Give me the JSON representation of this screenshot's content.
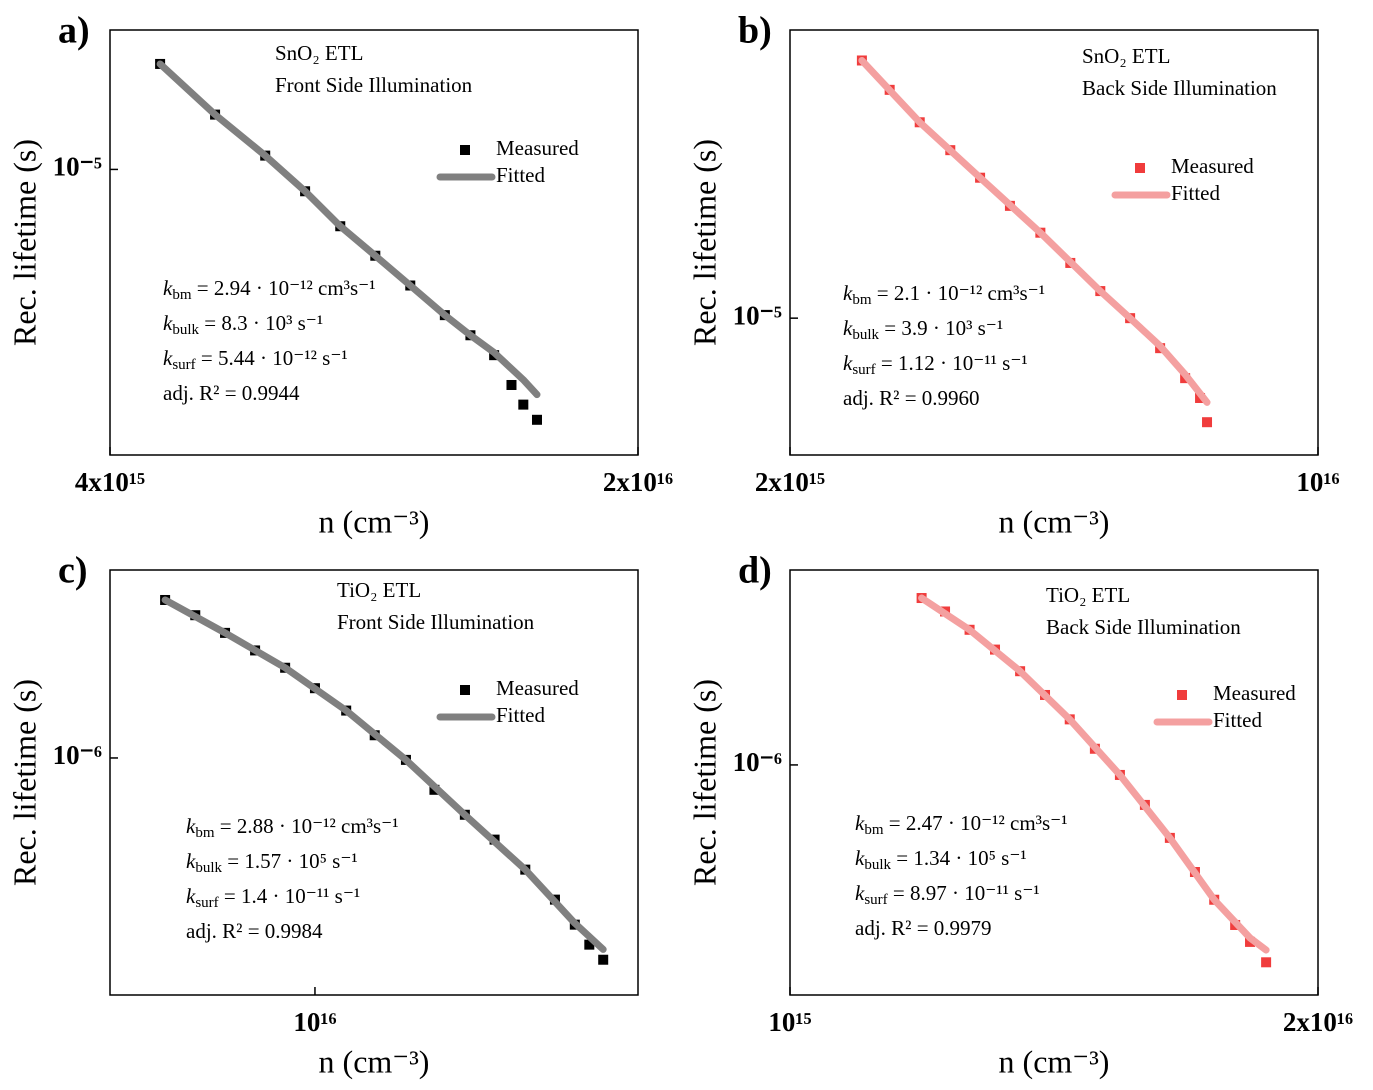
{
  "chart_data": [
    {
      "type": "scatter",
      "label": "a)",
      "x_label": "n (cm⁻³)",
      "y_label": "Rec. lifetime (s)",
      "log_x": true,
      "log_y": true,
      "annotations": [
        "SnO₂ ETL",
        "Front Side Illumination"
      ],
      "params": [
        {
          "symbol": "k",
          "subscript": "bm",
          "text": " = 2.94 · 10⁻¹² cm³s⁻¹"
        },
        {
          "symbol": "k",
          "subscript": "bulk",
          "text": " = 8.3 · 10³ s⁻¹"
        },
        {
          "symbol": "k",
          "subscript": "surf",
          "text": " = 5.44 · 10⁻¹² s⁻¹"
        },
        {
          "text": "adj. R² = 0.9944"
        }
      ],
      "xlim": [
        4000000000000000.0,
        2e+16
      ],
      "xticks": [
        {
          "value": 4000000000000000.0,
          "label": "4x10¹⁵"
        },
        {
          "value": 2e+16,
          "label": "2x10¹⁶"
        }
      ],
      "ylim": [
        3e-06,
        1.8e-05
      ],
      "yticks": [
        {
          "value": 1e-05,
          "label": "10⁻⁵"
        }
      ],
      "series": [
        {
          "name": "Measured",
          "color": "#000000",
          "mark": "square",
          "x": [
            4660000000000000.0,
            5510000000000000.0,
            6420000000000000.0,
            7250000000000000.0,
            8070000000000000.0,
            8980000000000000.0,
            9990000000000000.0,
            1.11e+16,
            1.2e+16,
            1.29e+16,
            1.36e+16,
            1.41e+16,
            1.47e+16
          ],
          "values": [
            1.56e-05,
            1.26e-05,
            1.06e-05,
            9.12e-06,
            7.87e-06,
            6.95e-06,
            6.13e-06,
            5.41e-06,
            4.97e-06,
            4.57e-06,
            4.03e-06,
            3.71e-06,
            3.48e-06
          ]
        },
        {
          "name": "Fitted",
          "color": "#808080",
          "mark": "line",
          "x": [
            4660000000000000.0,
            5510000000000000.0,
            6420000000000000.0,
            7250000000000000.0,
            8070000000000000.0,
            8980000000000000.0,
            9990000000000000.0,
            1.11e+16,
            1.2e+16,
            1.29e+16,
            1.41e+16,
            1.47e+16
          ],
          "values": [
            1.56e-05,
            1.26e-05,
            1.06e-05,
            9.12e-06,
            7.87e-06,
            6.95e-06,
            6.13e-06,
            5.41e-06,
            4.97e-06,
            4.62e-06,
            4.12e-06,
            3.87e-06
          ]
        }
      ]
    },
    {
      "type": "scatter",
      "label": "b)",
      "x_label": "n (cm⁻³)",
      "y_label": "Rec. lifetime (s)",
      "log_x": true,
      "log_y": true,
      "annotations": [
        "SnO₂ ETL",
        "Back Side Illumination"
      ],
      "params": [
        {
          "symbol": "k",
          "subscript": "bm",
          "text": " = 2.1 · 10⁻¹² cm³s⁻¹"
        },
        {
          "symbol": "k",
          "subscript": "bulk",
          "text": " = 3.9 · 10³ s⁻¹"
        },
        {
          "symbol": "k",
          "subscript": "surf",
          "text": " = 1.12 · 10⁻¹¹ s⁻¹"
        },
        {
          "text": "adj. R² = 0.9960"
        }
      ],
      "xlim": [
        2000000000000000.0,
        1e+16
      ],
      "xticks": [
        {
          "value": 2000000000000000.0,
          "label": "2x10¹⁵"
        },
        {
          "value": 1e+16,
          "label": "10¹⁶"
        }
      ],
      "ylim": [
        5.64e-06,
        3.34e-05
      ],
      "yticks": [
        {
          "value": 1e-05,
          "label": "10⁻⁵"
        }
      ],
      "series": [
        {
          "name": "Measured",
          "color": "#f03c3c",
          "mark": "square",
          "x": [
            2490000000000000.0,
            2710000000000000.0,
            2970000000000000.0,
            3260000000000000.0,
            3570000000000000.0,
            3910000000000000.0,
            4290000000000000.0,
            4700000000000000.0,
            5150000000000000.0,
            5640000000000000.0,
            6180000000000000.0,
            6670000000000000.0,
            6980000000000000.0,
            7130000000000000.0
          ],
          "values": [
            2.94e-05,
            2.6e-05,
            2.27e-05,
            2.02e-05,
            1.8e-05,
            1.6e-05,
            1.43e-05,
            1.26e-05,
            1.12e-05,
            1e-05,
            8.82e-06,
            7.78e-06,
            7.16e-06,
            6.47e-06
          ]
        },
        {
          "name": "Fitted",
          "color": "#f4a0a0",
          "mark": "line",
          "x": [
            2490000000000000.0,
            2970000000000000.0,
            3570000000000000.0,
            4290000000000000.0,
            5150000000000000.0,
            5640000000000000.0,
            6180000000000000.0,
            6670000000000000.0,
            7130000000000000.0
          ],
          "values": [
            2.94e-05,
            2.27e-05,
            1.8e-05,
            1.43e-05,
            1.12e-05,
            1e-05,
            8.9e-06,
            7.9e-06,
            7.03e-06
          ]
        }
      ]
    },
    {
      "type": "scatter",
      "label": "c)",
      "x_label": "n (cm⁻³)",
      "y_label": "Rec. lifetime (s)",
      "log_x": true,
      "log_y": true,
      "annotations": [
        "TiO₂ ETL",
        "Front Side Illumination"
      ],
      "params": [
        {
          "symbol": "k",
          "subscript": "bm",
          "text": " = 2.88 · 10⁻¹² cm³s⁻¹"
        },
        {
          "symbol": "k",
          "subscript": "bulk",
          "text": " = 1.57 · 10⁵ s⁻¹"
        },
        {
          "symbol": "k",
          "subscript": "surf",
          "text": " = 1.4 · 10⁻¹¹ s⁻¹"
        },
        {
          "text": "adj. R² = 0.9984"
        }
      ],
      "xlim": [
        5350000000000000.0,
        2.68e+16
      ],
      "xticks": [
        {
          "value": 1e+16,
          "label": "10¹⁶"
        }
      ],
      "ylim": [
        3.7e-07,
        2.2e-06
      ],
      "yticks": [
        {
          "value": 1e-06,
          "label": "10⁻⁶"
        }
      ],
      "series": [
        {
          "name": "Measured",
          "color": "#000000",
          "mark": "square",
          "x": [
            6330000000000000.0,
            6940000000000000.0,
            7600000000000000.0,
            8330000000000000.0,
            9130000000000000.0,
            1e+16,
            1.1e+16,
            1.2e+16,
            1.32e+16,
            1.44e+16,
            1.58e+16,
            1.73e+16,
            1.9e+16,
            2.08e+16,
            2.21e+16,
            2.31e+16,
            2.41e+16
          ],
          "values": [
            1.94e-06,
            1.82e-06,
            1.69e-06,
            1.57e-06,
            1.46e-06,
            1.34e-06,
            1.22e-06,
            1.1e-06,
            9.92e-07,
            8.75e-07,
            7.88e-07,
            7.1e-07,
            6.26e-07,
            5.52e-07,
            4.97e-07,
            4.57e-07,
            4.29e-07
          ]
        },
        {
          "name": "Fitted",
          "color": "#808080",
          "mark": "line",
          "x": [
            6330000000000000.0,
            7600000000000000.0,
            9130000000000000.0,
            1.1e+16,
            1.32e+16,
            1.58e+16,
            1.9e+16,
            2.21e+16,
            2.41e+16
          ],
          "values": [
            1.94e-06,
            1.69e-06,
            1.46e-06,
            1.22e-06,
            9.92e-07,
            7.88e-07,
            6.26e-07,
            5e-07,
            4.48e-07
          ]
        }
      ]
    },
    {
      "type": "scatter",
      "label": "d)",
      "x_label": "n (cm⁻³)",
      "y_label": "Rec. lifetime (s)",
      "log_x": true,
      "log_y": true,
      "annotations": [
        "TiO₂ ETL",
        "Back Side Illumination"
      ],
      "params": [
        {
          "symbol": "k",
          "subscript": "bm",
          "text": " = 2.47 · 10⁻¹² cm³s⁻¹"
        },
        {
          "symbol": "k",
          "subscript": "bulk",
          "text": " = 1.34 · 10⁵ s⁻¹"
        },
        {
          "symbol": "k",
          "subscript": "surf",
          "text": " = 8.97 · 10⁻¹¹ s⁻¹"
        },
        {
          "text": "adj. R² = 0.9979"
        }
      ],
      "xlim": [
        1000000000000000.0,
        2e+16
      ],
      "xticks": [
        {
          "value": 1000000000000000.0,
          "label": "10¹⁵"
        },
        {
          "value": 2e+16,
          "label": "2x10¹⁶"
        }
      ],
      "ylim": [
        3.82e-07,
        2.26e-06
      ],
      "yticks": [
        {
          "value": 1e-06,
          "label": "10⁻⁶"
        }
      ],
      "series": [
        {
          "name": "Measured",
          "color": "#f03c3c",
          "mark": "square",
          "x": [
            2110000000000000.0,
            2410000000000000.0,
            2770000000000000.0,
            3200000000000000.0,
            3690000000000000.0,
            4250000000000000.0,
            4890000000000000.0,
            5640000000000000.0,
            6500000000000000.0,
            7490000000000000.0,
            8630000000000000.0,
            9950000000000000.0,
            1.11e+16,
            1.25e+16,
            1.36e+16,
            1.49e+16
          ],
          "values": [
            2.01e-06,
            1.9e-06,
            1.76e-06,
            1.62e-06,
            1.48e-06,
            1.34e-06,
            1.21e-06,
            1.07e-06,
            9.59e-07,
            8.46e-07,
            7.37e-07,
            6.39e-07,
            5.69e-07,
            5.12e-07,
            4.77e-07,
            4.38e-07
          ]
        },
        {
          "name": "Fitted",
          "color": "#f4a0a0",
          "mark": "line",
          "x": [
            2110000000000000.0,
            2770000000000000.0,
            3690000000000000.0,
            4890000000000000.0,
            6500000000000000.0,
            8630000000000000.0,
            1.11e+16,
            1.36e+16,
            1.49e+16
          ],
          "values": [
            2.01e-06,
            1.76e-06,
            1.48e-06,
            1.21e-06,
            9.59e-07,
            7.37e-07,
            5.69e-07,
            4.85e-07,
            4.61e-07
          ]
        }
      ]
    }
  ]
}
